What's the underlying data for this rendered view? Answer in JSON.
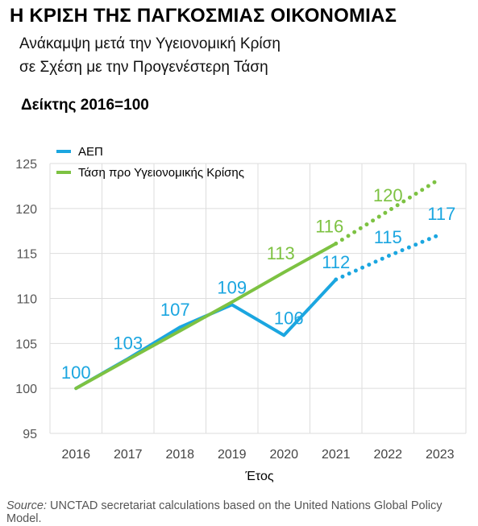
{
  "header": {
    "title": "Η ΚΡΙΣΗ ΤΗΣ ΠΑΓΚΟΣΜΙΑΣ ΟΙΚΟΝΟΜΙΑΣ",
    "subtitle_line1": "Ανάκαμψη μετά την Υγειονομική Κρίση",
    "subtitle_line2": "σε Σχέση με την Προγενέστερη Τάση",
    "index_note": "Δείκτης 2016=100"
  },
  "footer": {
    "source_label": "Source:",
    "source_text": " UNCTAD secretariat calculations based on the United Nations Global Policy Model."
  },
  "chart_data": {
    "type": "line",
    "xlabel": "Έτος",
    "ylabel": "",
    "categories": [
      "2016",
      "2017",
      "2018",
      "2019",
      "2020",
      "2021",
      "2022",
      "2023"
    ],
    "ylim": [
      95,
      125
    ],
    "yticks": [
      95,
      100,
      105,
      110,
      115,
      120,
      125
    ],
    "grid": true,
    "legend_position": "top-left",
    "series": [
      {
        "name": "ΑΕΠ",
        "color": "#1ba6e0",
        "values": [
          100.0,
          103.3,
          106.8,
          109.3,
          105.9,
          112.1,
          114.7,
          117.1
        ],
        "labels": [
          "100",
          "103",
          "107",
          "109",
          "106",
          "112",
          "115",
          "117"
        ],
        "dotted_from_index": 5
      },
      {
        "name": "Τάση προ Υγειονομικής Κρίσης",
        "color": "#7dc242",
        "values": [
          100.0,
          103.2,
          106.4,
          109.6,
          112.9,
          116.1,
          119.7,
          123.3
        ],
        "labels": [
          null,
          null,
          null,
          null,
          "113",
          "116",
          "120",
          null
        ],
        "dotted_from_index": 5
      }
    ]
  }
}
